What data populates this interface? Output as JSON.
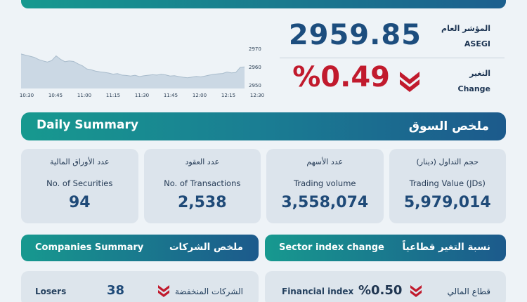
{
  "chart": {
    "y_ticks": [
      "2970",
      "2960",
      "2950"
    ],
    "x_ticks": [
      "10:30",
      "10:45",
      "11:00",
      "11:15",
      "11:30",
      "11:45",
      "12:00",
      "12:15",
      "12:30"
    ],
    "series": [
      2967.0,
      2966.4,
      2965.8,
      2965.2,
      2964.0,
      2963.2,
      2962.6,
      2963.4,
      2966.0,
      2964.1,
      2962.8,
      2963.2,
      2962.9,
      2961.6,
      2960.5,
      2958.8,
      2958.3,
      2957.6,
      2957.2,
      2956.9,
      2956.5,
      2955.9,
      2956.2,
      2955.4,
      2955.2,
      2954.9,
      2955.3,
      2954.6,
      2955.0,
      2955.3,
      2955.6,
      2955.4,
      2955.8,
      2955.5,
      2954.9,
      2955.1,
      2954.6,
      2954.2,
      2953.9,
      2954.3,
      2954.7,
      2954.4,
      2954.9,
      2955.4,
      2955.8,
      2956.1,
      2956.3,
      2957.1,
      2956.6,
      2956.8,
      2959.6,
      2959.9
    ]
  },
  "index": {
    "label_ar": "المؤشر العام",
    "label_en": "ASEGI",
    "value": "2959.85"
  },
  "change": {
    "label_ar": "التغير",
    "label_en": "Change",
    "value": "%0.49"
  },
  "daily": {
    "title_en": "Daily Summary",
    "title_ar": "ملخص السوق",
    "cards": [
      {
        "ar": "عدد الأوراق المالية",
        "en": "No. of Securities",
        "value": "94"
      },
      {
        "ar": "عدد العقود",
        "en": "No. of Transactions",
        "value": "2,538"
      },
      {
        "ar": "عدد الأسهم",
        "en": "Trading volume",
        "value": "3,558,074"
      },
      {
        "ar": "حجم التداول (دينار)",
        "en": "Trading Value (JDs)",
        "value": "5,979,014"
      }
    ]
  },
  "companies": {
    "title_en": "Companies Summary",
    "title_ar": "ملخص الشركات",
    "losers_en": "Losers",
    "losers_count": "38",
    "losers_ar": "الشركات المنخفضة"
  },
  "sector": {
    "title_en": "Sector index change",
    "title_ar": "نسبة التغير قطاعياً",
    "row_en": "Financial index",
    "row_value": "%0.50",
    "row_ar": "قطاع المالي"
  },
  "colors": {
    "down": "#c11a2d",
    "accent": "#1c4d7e",
    "bar_start": "#17998f",
    "bar_end": "#1c5a8c"
  }
}
